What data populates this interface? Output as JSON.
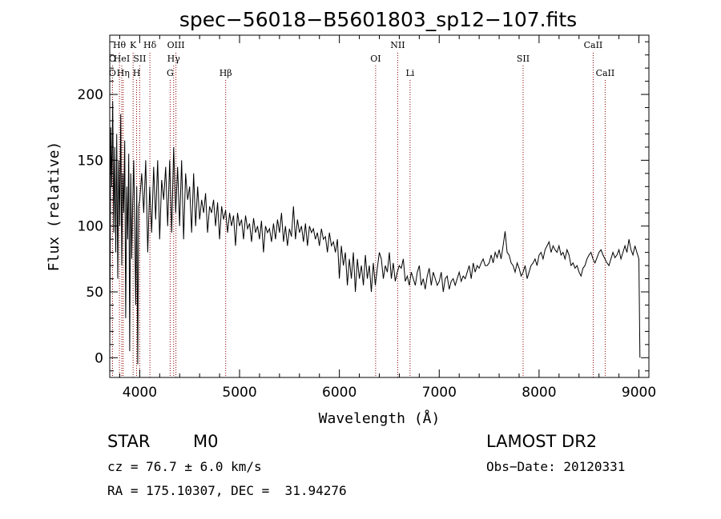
{
  "chart_data": {
    "type": "line",
    "title": "spec−56018−B5601803_sp12−107.fits",
    "xlabel": "Wavelength (Å)",
    "ylabel": "Flux (relative)",
    "xlim": [
      3700,
      9100
    ],
    "ylim": [
      -15,
      245
    ],
    "xticks": [
      4000,
      5000,
      6000,
      7000,
      8000,
      9000
    ],
    "yticks": [
      0,
      50,
      100,
      150,
      200
    ],
    "series": [
      {
        "name": "flux",
        "x": [
          3700,
          3710,
          3720,
          3730,
          3740,
          3750,
          3760,
          3770,
          3780,
          3790,
          3800,
          3810,
          3820,
          3830,
          3840,
          3850,
          3860,
          3870,
          3880,
          3890,
          3900,
          3910,
          3920,
          3930,
          3940,
          3950,
          3960,
          3970,
          3980,
          3990,
          4000,
          4020,
          4040,
          4060,
          4080,
          4100,
          4120,
          4140,
          4160,
          4180,
          4200,
          4220,
          4240,
          4260,
          4280,
          4300,
          4320,
          4340,
          4360,
          4380,
          4400,
          4420,
          4440,
          4460,
          4480,
          4500,
          4520,
          4540,
          4560,
          4580,
          4600,
          4620,
          4640,
          4660,
          4680,
          4700,
          4720,
          4740,
          4760,
          4780,
          4800,
          4820,
          4840,
          4860,
          4880,
          4900,
          4920,
          4940,
          4960,
          4980,
          5000,
          5020,
          5040,
          5060,
          5080,
          5100,
          5120,
          5140,
          5160,
          5180,
          5200,
          5220,
          5240,
          5260,
          5280,
          5300,
          5320,
          5340,
          5360,
          5380,
          5400,
          5420,
          5440,
          5460,
          5480,
          5500,
          5520,
          5540,
          5560,
          5580,
          5600,
          5620,
          5640,
          5660,
          5680,
          5700,
          5720,
          5740,
          5760,
          5780,
          5800,
          5820,
          5840,
          5860,
          5880,
          5900,
          5920,
          5940,
          5960,
          5980,
          6000,
          6020,
          6040,
          6060,
          6080,
          6100,
          6120,
          6140,
          6160,
          6180,
          6200,
          6220,
          6240,
          6260,
          6280,
          6300,
          6320,
          6340,
          6360,
          6380,
          6400,
          6420,
          6440,
          6460,
          6480,
          6500,
          6520,
          6540,
          6560,
          6580,
          6600,
          6620,
          6640,
          6660,
          6680,
          6700,
          6720,
          6740,
          6760,
          6780,
          6800,
          6820,
          6840,
          6860,
          6880,
          6900,
          6920,
          6940,
          6960,
          6980,
          7000,
          7020,
          7040,
          7060,
          7080,
          7100,
          7120,
          7140,
          7160,
          7180,
          7200,
          7220,
          7240,
          7260,
          7280,
          7300,
          7320,
          7340,
          7360,
          7380,
          7400,
          7420,
          7440,
          7460,
          7480,
          7500,
          7520,
          7540,
          7560,
          7580,
          7600,
          7620,
          7640,
          7660,
          7680,
          7700,
          7720,
          7740,
          7760,
          7780,
          7800,
          7820,
          7840,
          7860,
          7880,
          7900,
          7920,
          7940,
          7960,
          7980,
          8000,
          8020,
          8040,
          8060,
          8080,
          8100,
          8120,
          8140,
          8160,
          8180,
          8200,
          8220,
          8240,
          8260,
          8280,
          8300,
          8320,
          8340,
          8360,
          8380,
          8400,
          8420,
          8440,
          8460,
          8480,
          8500,
          8520,
          8540,
          8560,
          8580,
          8600,
          8620,
          8640,
          8660,
          8680,
          8700,
          8720,
          8740,
          8760,
          8780,
          8800,
          8820,
          8840,
          8860,
          8880,
          8900,
          8920,
          8940,
          8960,
          8980,
          9000,
          9010
        ],
        "y": [
          0,
          175,
          130,
          195,
          95,
          160,
          80,
          170,
          60,
          150,
          100,
          185,
          70,
          140,
          110,
          165,
          30,
          130,
          90,
          155,
          5,
          140,
          75,
          120,
          150,
          100,
          40,
          130,
          -5,
          115,
          120,
          140,
          110,
          150,
          80,
          130,
          95,
          145,
          105,
          150,
          90,
          135,
          120,
          145,
          100,
          150,
          95,
          160,
          110,
          145,
          100,
          150,
          90,
          140,
          120,
          130,
          95,
          140,
          100,
          130,
          105,
          120,
          110,
          125,
          95,
          115,
          110,
          120,
          100,
          118,
          90,
          115,
          105,
          112,
          95,
          110,
          100,
          108,
          85,
          110,
          100,
          105,
          90,
          108,
          98,
          102,
          88,
          106,
          95,
          100,
          90,
          104,
          80,
          100,
          95,
          98,
          88,
          102,
          90,
          105,
          95,
          110,
          88,
          100,
          85,
          98,
          92,
          115,
          90,
          105,
          95,
          100,
          88,
          102,
          85,
          100,
          95,
          98,
          90,
          95,
          85,
          98,
          90,
          92,
          80,
          95,
          85,
          88,
          80,
          90,
          60,
          85,
          70,
          80,
          55,
          75,
          60,
          80,
          50,
          75,
          60,
          70,
          55,
          78,
          60,
          70,
          50,
          72,
          55,
          68,
          80,
          75,
          60,
          70,
          65,
          80,
          60,
          72,
          58,
          65,
          70,
          68,
          75,
          58,
          62,
          55,
          65,
          60,
          55,
          65,
          70,
          55,
          60,
          52,
          62,
          68,
          55,
          65,
          60,
          55,
          58,
          65,
          50,
          60,
          62,
          52,
          58,
          60,
          55,
          60,
          65,
          58,
          62,
          60,
          65,
          70,
          60,
          72,
          65,
          70,
          68,
          72,
          75,
          70,
          70,
          72,
          78,
          72,
          80,
          76,
          82,
          75,
          85,
          96,
          80,
          78,
          72,
          70,
          65,
          72,
          68,
          62,
          65,
          70,
          60,
          65,
          70,
          72,
          75,
          70,
          78,
          80,
          75,
          82,
          85,
          88,
          80,
          85,
          82,
          80,
          85,
          78,
          80,
          75,
          82,
          78,
          70,
          72,
          68,
          70,
          65,
          62,
          68,
          70,
          75,
          78,
          80,
          75,
          72,
          76,
          80,
          82,
          78,
          75,
          72,
          70,
          75,
          80,
          76,
          78,
          82,
          75,
          80,
          85,
          80,
          90,
          82,
          78,
          85,
          80,
          75,
          0
        ]
      }
    ],
    "lines": [
      {
        "label": "O",
        "x": 3727,
        "row": 2
      },
      {
        "label": "O",
        "x": 3727,
        "row": 3
      },
      {
        "label": "Hθ",
        "x": 3797,
        "row": 1
      },
      {
        "label": "HeI",
        "x": 3820,
        "row": 2
      },
      {
        "label": "Hη",
        "x": 3835,
        "row": 3
      },
      {
        "label": "K",
        "x": 3934,
        "row": 1
      },
      {
        "label": "SII",
        "x": 4000,
        "row": 2
      },
      {
        "label": "H",
        "x": 3969,
        "row": 3
      },
      {
        "label": "Hδ",
        "x": 4102,
        "row": 1
      },
      {
        "label": "OIII",
        "x": 4363,
        "row": 1
      },
      {
        "label": "Hγ",
        "x": 4340,
        "row": 2
      },
      {
        "label": "G",
        "x": 4305,
        "row": 3
      },
      {
        "label": "Hβ",
        "x": 4861,
        "row": 3
      },
      {
        "label": "OI",
        "x": 6363,
        "row": 2
      },
      {
        "label": "NII",
        "x": 6584,
        "row": 1
      },
      {
        "label": "Li",
        "x": 6708,
        "row": 3
      },
      {
        "label": "SII",
        "x": 7840,
        "row": 2
      },
      {
        "label": "CaII",
        "x": 8542,
        "row": 1
      },
      {
        "label": "CaII",
        "x": 8662,
        "row": 3
      }
    ]
  },
  "footer": {
    "class_label": "STAR",
    "subclass": "M0",
    "survey": "LAMOST DR2",
    "cz": "cz = 76.7 ± 6.0 km/s",
    "obs_date": "Obs−Date: 20120331",
    "coords": "RA = 175.10307, DEC =  31.94276"
  },
  "colors": {
    "line_marker": "#8b0000",
    "spectrum": "#000000"
  }
}
